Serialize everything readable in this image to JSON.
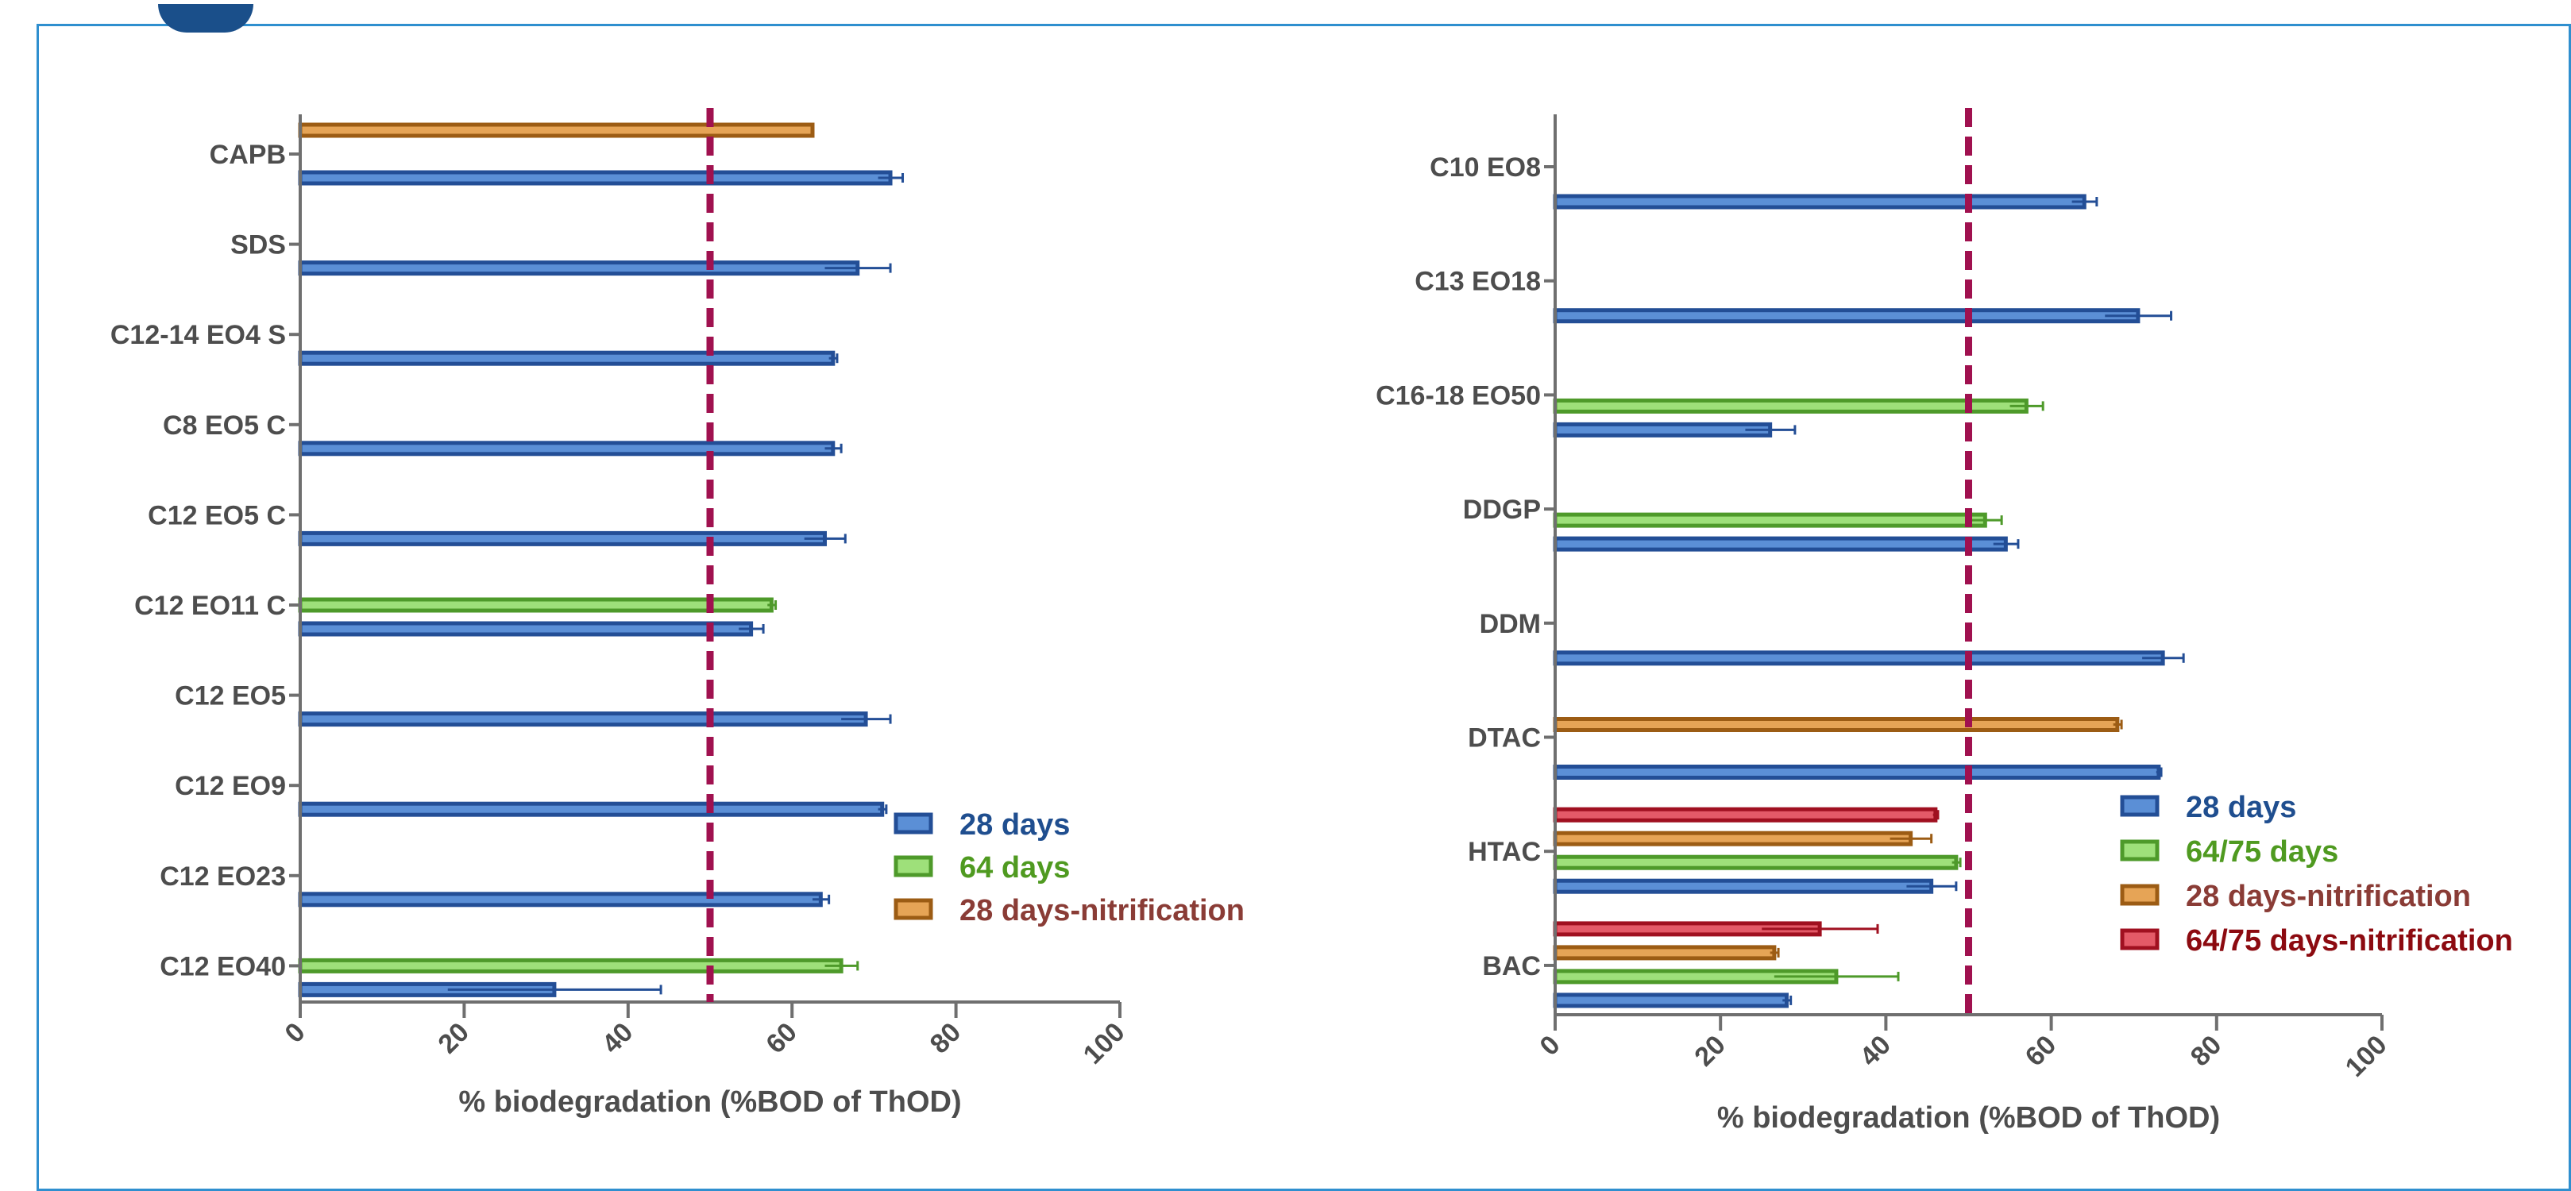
{
  "colors": {
    "s28": {
      "fill": "#5b8fd6",
      "stroke": "#234e96",
      "text": "#1f4e8f"
    },
    "s64": {
      "fill": "#9ee07a",
      "stroke": "#4e9a2a",
      "text": "#4f9a20"
    },
    "snit": {
      "fill": "#e6a456",
      "stroke": "#9c5c14",
      "text": "#8a3c36"
    },
    "s64nit": {
      "fill": "#e45a68",
      "stroke": "#a01020",
      "text": "#8c0a10"
    },
    "threshold": "#a0114f",
    "axis": "#6f6f6f"
  },
  "chart_data": [
    {
      "type": "bar",
      "orientation": "horizontal",
      "categories": [
        "CAPB",
        "SDS",
        "C12-14 EO4 S",
        "C8 EO5 C",
        "C12 EO5 C",
        "C12 EO11 C",
        "C12 EO5",
        "C12 EO9",
        "C12 EO23",
        "C12 EO40"
      ],
      "series": [
        {
          "name": "28 days",
          "key": "s28",
          "values": [
            72,
            68,
            65,
            65,
            64,
            55,
            69,
            71,
            63.5,
            31
          ],
          "errors": [
            1.5,
            4,
            0.5,
            1,
            2.5,
            1.5,
            3,
            0.5,
            1,
            13
          ]
        },
        {
          "name": "64 days",
          "key": "s64",
          "values": [
            null,
            null,
            null,
            null,
            null,
            57.5,
            null,
            null,
            null,
            66
          ],
          "errors": [
            null,
            null,
            null,
            null,
            null,
            0.5,
            null,
            null,
            null,
            2
          ]
        },
        {
          "name": "28 days-nitrification",
          "key": "snit",
          "values": [
            62.5,
            null,
            null,
            null,
            null,
            null,
            null,
            null,
            null,
            null
          ],
          "errors": [
            null,
            null,
            null,
            null,
            null,
            null,
            null,
            null,
            null,
            null
          ]
        }
      ],
      "threshold": 50,
      "xlim": [
        0,
        100
      ],
      "xticks": [
        "0",
        "20",
        "40",
        "60",
        "80",
        "100"
      ],
      "xlabel": "% biodegradation (%BOD of ThOD)",
      "legend": [
        "28 days",
        "64 days",
        "28 days-nitrification"
      ],
      "legend_keys": [
        "s28",
        "s64",
        "snit"
      ],
      "legend_position": "right"
    },
    {
      "type": "bar",
      "orientation": "horizontal",
      "categories": [
        "C10 EO8",
        "C13 EO18",
        "C16-18 EO50",
        "DDGP",
        "DDM",
        "DTAC",
        "HTAC",
        "BAC"
      ],
      "series": [
        {
          "name": "28 days",
          "key": "s28",
          "values": [
            64,
            70.5,
            26,
            54.5,
            73.5,
            73,
            45.5,
            28
          ],
          "errors": [
            1.5,
            4,
            3,
            1.5,
            2.5,
            0.3,
            3,
            0.5
          ]
        },
        {
          "name": "64/75 days",
          "key": "s64",
          "values": [
            null,
            null,
            57,
            52,
            null,
            null,
            48.5,
            34
          ],
          "errors": [
            null,
            null,
            2,
            2,
            null,
            null,
            0.5,
            7.5
          ]
        },
        {
          "name": "28 days-nitrification",
          "key": "snit",
          "values": [
            null,
            null,
            null,
            null,
            null,
            68,
            43,
            26.5
          ],
          "errors": [
            null,
            null,
            null,
            null,
            null,
            0.5,
            2.5,
            0.5
          ]
        },
        {
          "name": "64/75 days-nitrification",
          "key": "s64nit",
          "values": [
            null,
            null,
            null,
            null,
            null,
            null,
            46,
            32
          ],
          "errors": [
            null,
            null,
            null,
            null,
            null,
            null,
            0.3,
            7
          ]
        }
      ],
      "threshold": 50,
      "xlim": [
        0,
        100
      ],
      "xticks": [
        "0",
        "20",
        "40",
        "60",
        "80",
        "100"
      ],
      "xlabel": "% biodegradation (%BOD of ThOD)",
      "legend": [
        "28 days",
        "64/75 days",
        "28 days-nitrification",
        "64/75 days-nitrification"
      ],
      "legend_keys": [
        "s28",
        "s64",
        "snit",
        "s64nit"
      ],
      "legend_position": "right"
    }
  ]
}
